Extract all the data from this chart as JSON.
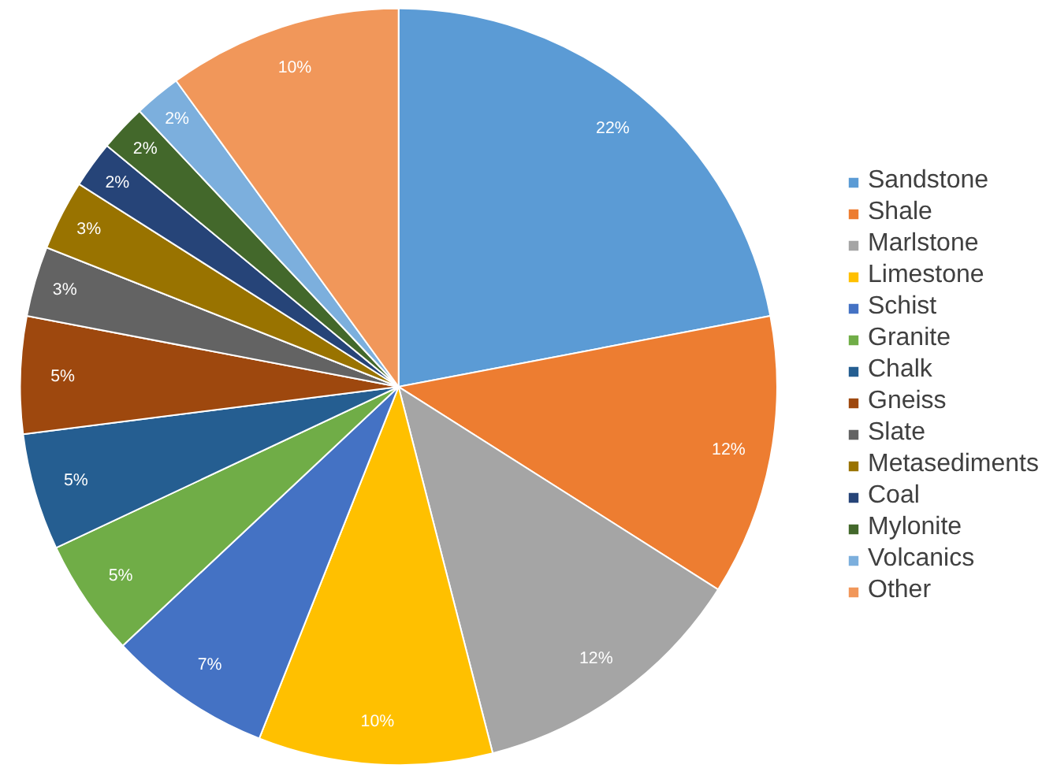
{
  "chart_data": {
    "type": "pie",
    "categories": [
      "Sandstone",
      "Shale",
      "Marlstone",
      "Limestone",
      "Schist",
      "Granite",
      "Chalk",
      "Gneiss",
      "Slate",
      "Metasediments",
      "Coal",
      "Mylonite",
      "Volcanics",
      "Other"
    ],
    "values": [
      22,
      12,
      12,
      10,
      7,
      5,
      5,
      5,
      3,
      3,
      2,
      2,
      2,
      10
    ],
    "value_labels": [
      "22%",
      "12%",
      "12%",
      "10%",
      "7%",
      "5%",
      "5%",
      "5%",
      "3%",
      "3%",
      "2%",
      "2%",
      "2%",
      "10%"
    ],
    "colors": [
      "#5b9bd5",
      "#ed7d31",
      "#a5a5a5",
      "#ffc000",
      "#4472c4",
      "#70ad47",
      "#255e91",
      "#9e480e",
      "#636363",
      "#997300",
      "#264478",
      "#43682b",
      "#7cafdd",
      "#f1975a"
    ],
    "legend": "right"
  }
}
